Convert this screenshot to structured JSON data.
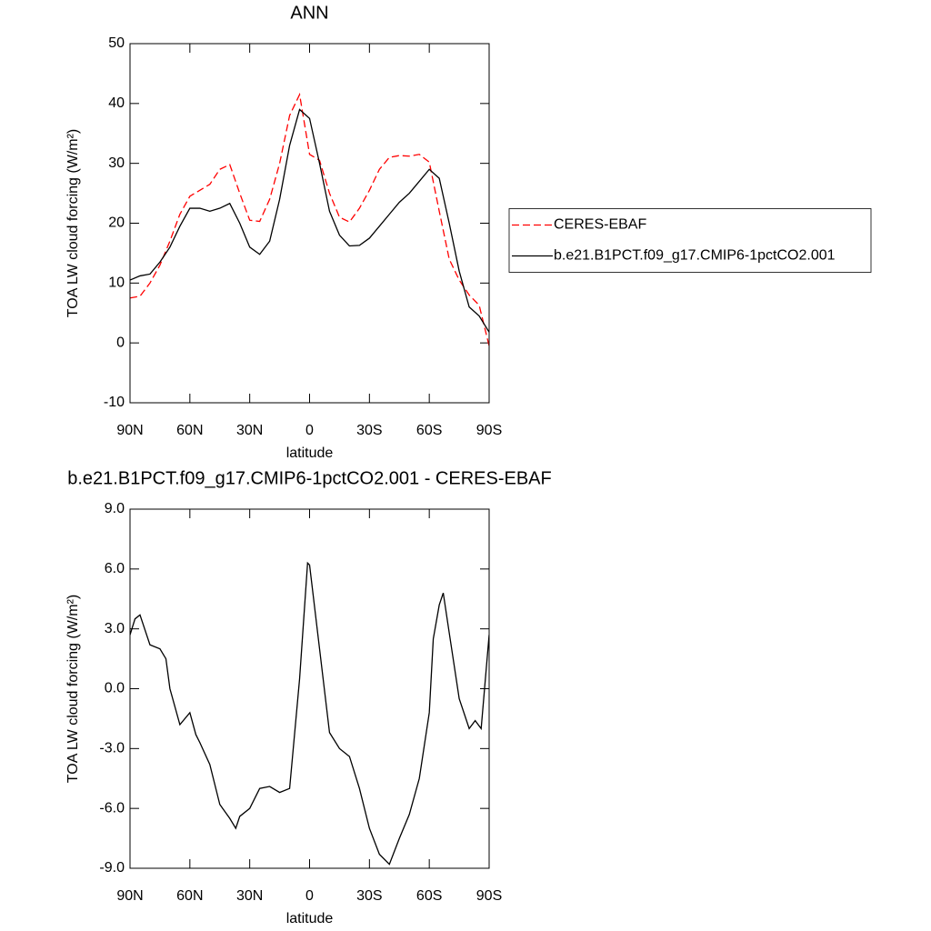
{
  "chart_data": [
    {
      "type": "line",
      "title": "ANN",
      "x_label": "latitude",
      "y_label": "TOA LW cloud forcing (W/m²)",
      "x": [
        90,
        85,
        80,
        75,
        70,
        65,
        60,
        55,
        50,
        45,
        40,
        35,
        30,
        25,
        20,
        15,
        10,
        5,
        0,
        -5,
        -10,
        -15,
        -20,
        -25,
        -30,
        -35,
        -40,
        -45,
        -50,
        -55,
        -60,
        -65,
        -70,
        -75,
        -80,
        -85,
        -90
      ],
      "series": [
        {
          "name": "CERES-EBAF",
          "color": "#ff0000",
          "dash": true,
          "values": [
            7.5,
            7.8,
            10,
            13,
            17,
            21.5,
            24.5,
            25.5,
            26.5,
            29,
            29.8,
            25,
            20.5,
            20.3,
            24,
            30,
            38,
            41.5,
            31.5,
            30.5,
            25,
            21,
            20.2,
            22.5,
            25.5,
            29,
            31,
            31.3,
            31.2,
            31.5,
            30.2,
            22,
            14,
            10.5,
            8,
            6.3,
            -0.5
          ]
        },
        {
          "name": "b.e21.B1PCT.f09_g17.CMIP6-1pctCO2.001",
          "color": "#000000",
          "dash": false,
          "values": [
            10.5,
            11.2,
            11.5,
            13.5,
            16,
            19.5,
            22.5,
            22.5,
            22,
            22.5,
            23.3,
            20,
            16,
            14.8,
            17,
            24,
            33,
            39,
            37.5,
            30,
            22,
            18,
            16.2,
            16.3,
            17.5,
            19.5,
            21.5,
            23.5,
            25,
            27,
            29,
            27.5,
            20,
            12,
            6,
            4.5,
            1.8
          ]
        }
      ],
      "xlim": [
        90,
        -90
      ],
      "xticks": [
        {
          "value": 90,
          "label": "90N"
        },
        {
          "value": 60,
          "label": "60N"
        },
        {
          "value": 30,
          "label": "30N"
        },
        0,
        {
          "value": -30,
          "label": "30S"
        },
        {
          "value": -60,
          "label": "60S"
        },
        {
          "value": -90,
          "label": "90S"
        }
      ],
      "ylim": [
        -10,
        50
      ],
      "yticks": [
        -10,
        0,
        10,
        20,
        30,
        40,
        50
      ],
      "legend": "right"
    },
    {
      "type": "line",
      "title": "b.e21.B1PCT.f09_g17.CMIP6-1pctCO2.001 - CERES-EBAF",
      "x_label": "latitude",
      "y_label": "TOA LW cloud forcing (W/m²)",
      "x": [
        90,
        87.5,
        85,
        80,
        75,
        72,
        70,
        65,
        60,
        57,
        55,
        50,
        45,
        40,
        37,
        35,
        30,
        25,
        20,
        15,
        10,
        5,
        1,
        0,
        -5,
        -10,
        -15,
        -20,
        -25,
        -30,
        -35,
        -40,
        -45,
        -50,
        -55,
        -60,
        -62,
        -65,
        -67,
        -70,
        -75,
        -80,
        -83,
        -86,
        -90
      ],
      "series": [
        {
          "color": "#000000",
          "dash": false,
          "values": [
            2.7,
            3.5,
            3.7,
            2.2,
            2.0,
            1.5,
            0,
            -1.8,
            -1.2,
            -2.3,
            -2.7,
            -3.8,
            -5.8,
            -6.5,
            -7.0,
            -6.4,
            -6.0,
            -5.0,
            -4.9,
            -5.2,
            -5.0,
            0.5,
            6.3,
            6.2,
            2.0,
            -2.2,
            -3.0,
            -3.4,
            -5.0,
            -7.0,
            -8.3,
            -8.8,
            -7.5,
            -6.3,
            -4.5,
            -1.2,
            2.5,
            4.2,
            4.8,
            2.8,
            -0.5,
            -2.0,
            -1.6,
            -2.0,
            2.7
          ]
        }
      ],
      "xlim": [
        90,
        -90
      ],
      "xticks": [
        {
          "value": 90,
          "label": "90N"
        },
        {
          "value": 60,
          "label": "60N"
        },
        {
          "value": 30,
          "label": "30N"
        },
        0,
        {
          "value": -30,
          "label": "30S"
        },
        {
          "value": -60,
          "label": "60S"
        },
        {
          "value": -90,
          "label": "90S"
        }
      ],
      "ylim": [
        -9,
        9
      ],
      "yticks": [
        {
          "value": -9,
          "label": "-9.0"
        },
        {
          "value": -6,
          "label": "-6.0"
        },
        {
          "value": -3,
          "label": "-3.0"
        },
        {
          "value": 0,
          "label": "0.0"
        },
        {
          "value": 3,
          "label": "3.0"
        },
        {
          "value": 6,
          "label": "6.0"
        },
        {
          "value": 9,
          "label": "9.0"
        }
      ]
    }
  ]
}
